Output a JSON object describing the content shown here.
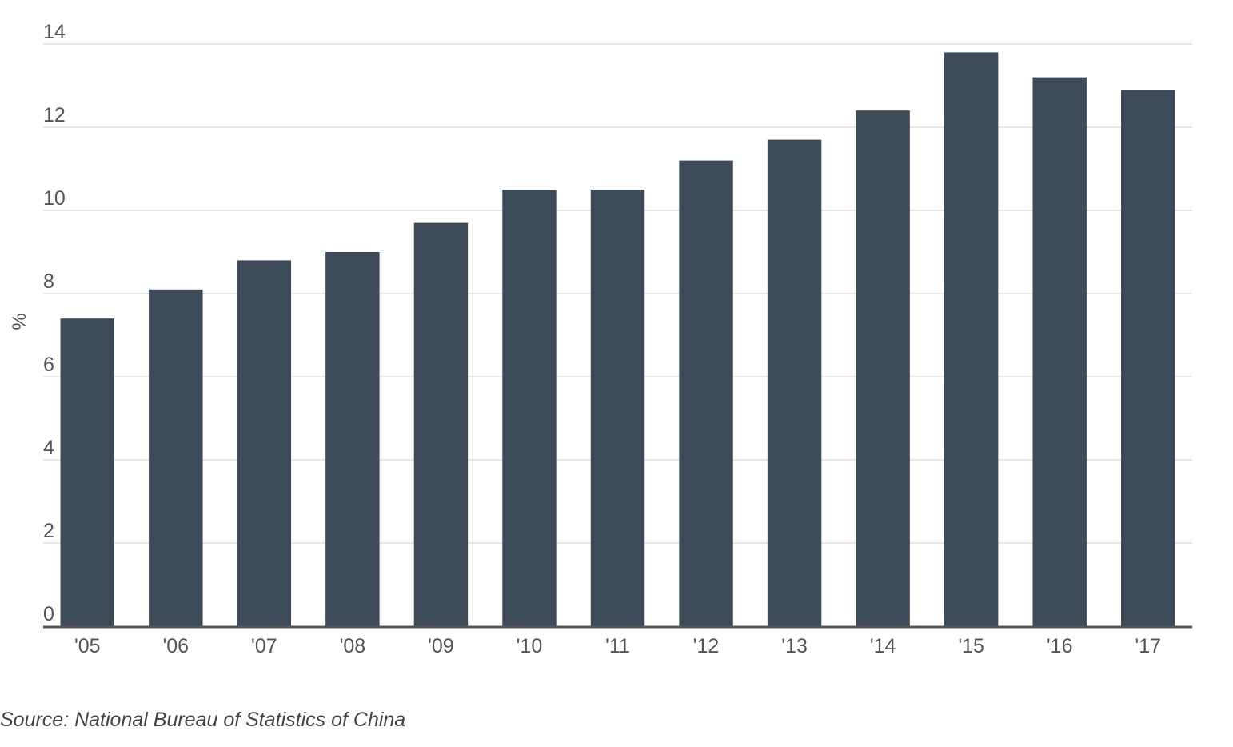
{
  "chart_data": {
    "type": "bar",
    "categories": [
      "'05",
      "'06",
      "'07",
      "'08",
      "'09",
      "'10",
      "'11",
      "'12",
      "'13",
      "'14",
      "'15",
      "'16",
      "'17"
    ],
    "values": [
      7.4,
      8.1,
      8.8,
      9.0,
      9.7,
      10.5,
      10.5,
      11.2,
      11.7,
      12.4,
      13.8,
      13.2,
      12.9
    ],
    "ylabel": "%",
    "ylim": [
      0,
      14
    ],
    "yticks": [
      0,
      2,
      4,
      6,
      8,
      10,
      12,
      14
    ],
    "grid": true,
    "legend": "none",
    "bar_color": "#3d4a58",
    "grid_color": "#dddddd",
    "axis_color": "#555555"
  },
  "source": {
    "text": "Source: National Bureau of Statistics of China"
  }
}
